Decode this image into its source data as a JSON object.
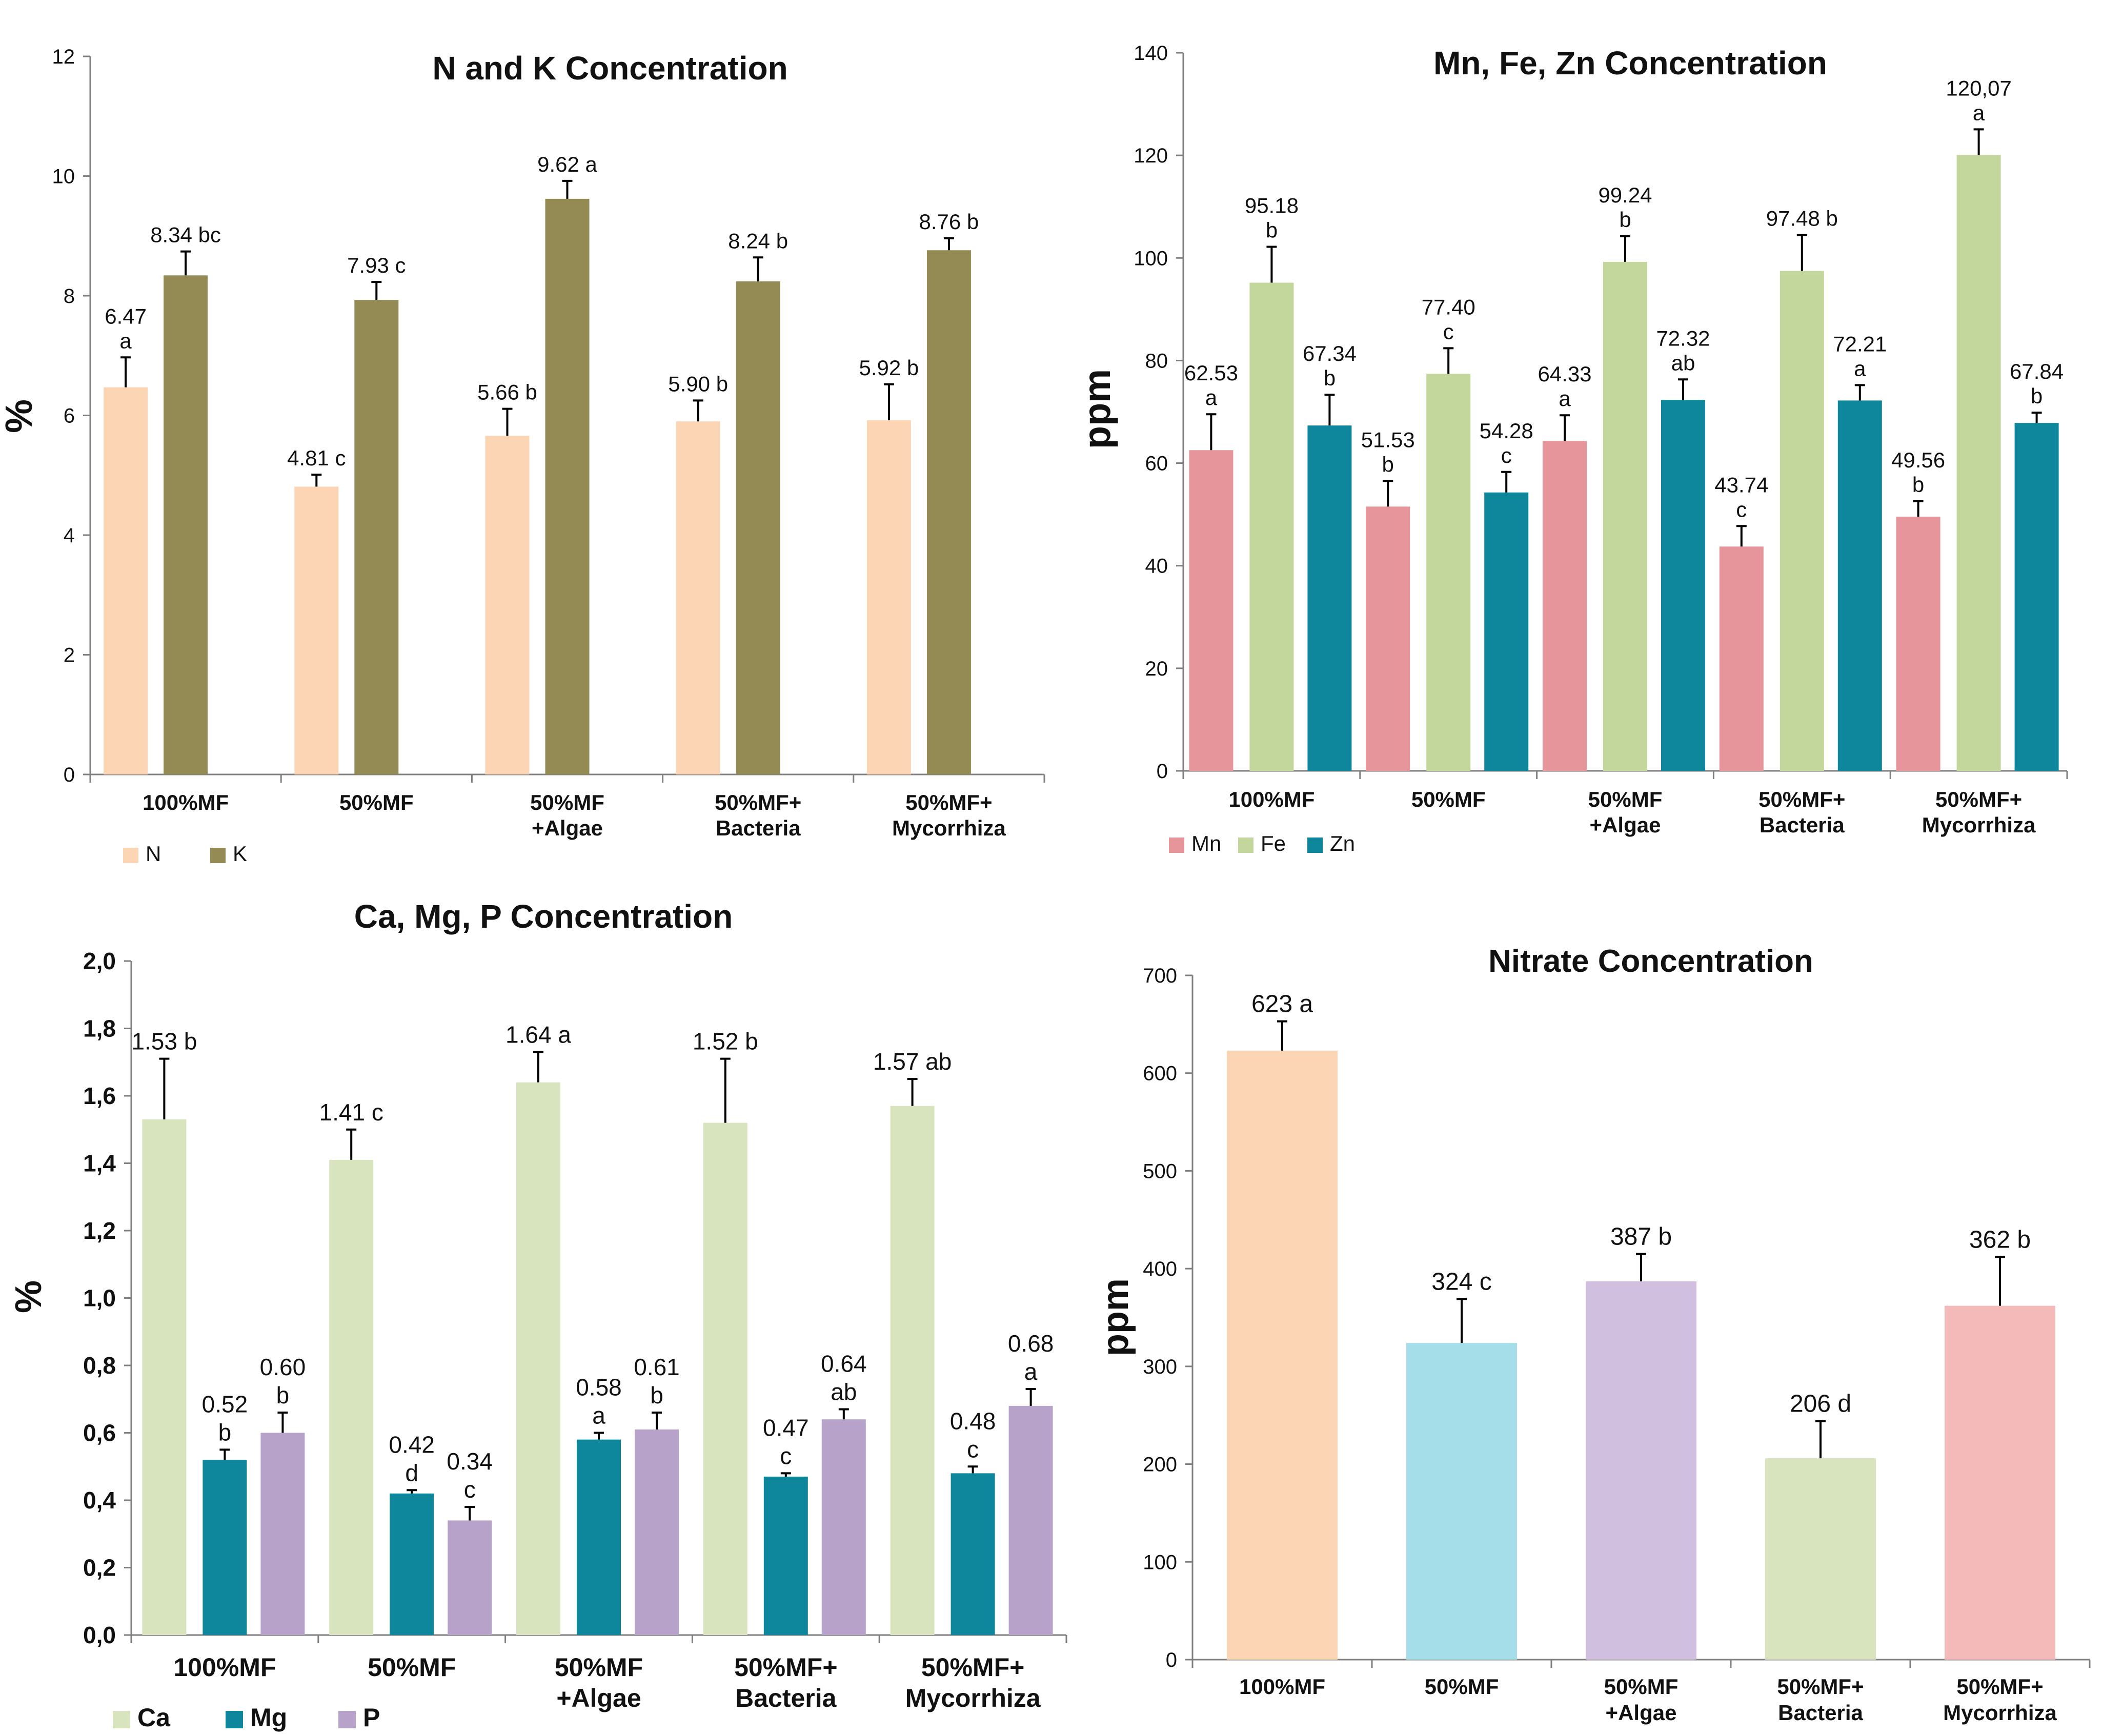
{
  "chart_data": [
    {
      "id": "nk",
      "type": "bar",
      "title": "N and K Concentration",
      "xlabel": "",
      "ylabel": "%",
      "ylim": [
        0,
        12
      ],
      "yticks": [
        "0",
        "2",
        "4",
        "6",
        "8",
        "10",
        "12"
      ],
      "grid": false,
      "legend_position": "bottom-left",
      "categories": [
        [
          "100%MF"
        ],
        [
          "50%MF"
        ],
        [
          "50%MF",
          "+Algae"
        ],
        [
          "50%MF+",
          "Bacteria"
        ],
        [
          "50%MF+",
          "Mycorrhiza"
        ]
      ],
      "series": [
        {
          "name": "N",
          "color": "#FCD5B4",
          "values": [
            6.47,
            4.81,
            5.66,
            5.9,
            5.92
          ],
          "errors": [
            0.5,
            0.2,
            0.45,
            0.35,
            0.6
          ],
          "labels": [
            [
              "6.47",
              "a"
            ],
            [
              "4.81 c"
            ],
            [
              "5.66 b"
            ],
            [
              "5.90 b"
            ],
            [
              "5.92 b"
            ]
          ]
        },
        {
          "name": "K",
          "color": "#948A54",
          "values": [
            8.34,
            7.93,
            9.62,
            8.24,
            8.76
          ],
          "errors": [
            0.4,
            0.3,
            0.3,
            0.4,
            0.2
          ],
          "labels": [
            [
              "8.34 bc"
            ],
            [
              "7.93 c"
            ],
            [
              "9.62 a"
            ],
            [
              "8.24 b"
            ],
            [
              "8.76 b"
            ]
          ]
        }
      ]
    },
    {
      "id": "mnfezn",
      "type": "bar",
      "title": "Mn, Fe, Zn Concentration",
      "xlabel": "",
      "ylabel": "ppm",
      "ylim": [
        0,
        140
      ],
      "yticks": [
        "0",
        "20",
        "40",
        "60",
        "80",
        "100",
        "120",
        "140"
      ],
      "grid": false,
      "legend_position": "bottom-left",
      "categories": [
        [
          "100%MF"
        ],
        [
          "50%MF"
        ],
        [
          "50%MF",
          "+Algae"
        ],
        [
          "50%MF+",
          "Bacteria"
        ],
        [
          "50%MF+",
          "Mycorrhiza"
        ]
      ],
      "series": [
        {
          "name": "Mn",
          "color": "#E6959A",
          "values": [
            62.53,
            51.53,
            64.33,
            43.74,
            49.56
          ],
          "errors": [
            7,
            5,
            5,
            4,
            3
          ],
          "labels": [
            [
              "62.53",
              "a"
            ],
            [
              "51.53",
              "b"
            ],
            [
              "64.33",
              "a"
            ],
            [
              "43.74",
              "c"
            ],
            [
              "49.56",
              "b"
            ]
          ]
        },
        {
          "name": "Fe",
          "color": "#C3D69B",
          "values": [
            95.18,
            77.4,
            99.24,
            97.48,
            120.07
          ],
          "errors": [
            7,
            5,
            5,
            7,
            5
          ],
          "labels": [
            [
              "95.18",
              "b"
            ],
            [
              "77.40",
              "c"
            ],
            [
              "99.24",
              "b"
            ],
            [
              "97.48 b"
            ],
            [
              "120,07",
              "a"
            ]
          ]
        },
        {
          "name": "Zn",
          "color": "#0E879D",
          "values": [
            67.34,
            54.28,
            72.32,
            72.21,
            67.84
          ],
          "errors": [
            6,
            4,
            4,
            3,
            2
          ],
          "labels": [
            [
              "67.34",
              "b"
            ],
            [
              "54.28",
              "c"
            ],
            [
              "72.32",
              "ab"
            ],
            [
              "72.21",
              "a"
            ],
            [
              "67.84",
              "b"
            ]
          ]
        }
      ]
    },
    {
      "id": "camgp",
      "type": "bar",
      "title": "Ca, Mg, P Concentration",
      "xlabel": "",
      "ylabel": "%",
      "ylim": [
        0,
        2.0
      ],
      "yticks": [
        "0,0",
        "0,2",
        "0,4",
        "0,6",
        "0,8",
        "1,0",
        "1,2",
        "1,4",
        "1,6",
        "1,8",
        "2,0"
      ],
      "grid": false,
      "legend_position": "bottom-left",
      "categories": [
        [
          "100%MF"
        ],
        [
          "50%MF"
        ],
        [
          "50%MF",
          "+Algae"
        ],
        [
          "50%MF+",
          "Bacteria"
        ],
        [
          "50%MF+",
          "Mycorrhiza"
        ]
      ],
      "series": [
        {
          "name": "Ca",
          "color": "#D7E4BD",
          "values": [
            1.53,
            1.41,
            1.64,
            1.52,
            1.57
          ],
          "errors": [
            0.18,
            0.09,
            0.09,
            0.19,
            0.08
          ],
          "labels": [
            [
              "1.53 b"
            ],
            [
              "1.41 c"
            ],
            [
              "1.64 a"
            ],
            [
              "1.52 b"
            ],
            [
              "1.57 ab"
            ]
          ]
        },
        {
          "name": "Mg",
          "color": "#0E879D",
          "values": [
            0.52,
            0.42,
            0.58,
            0.47,
            0.48
          ],
          "errors": [
            0.03,
            0.01,
            0.02,
            0.01,
            0.02
          ],
          "labels": [
            [
              "0.52",
              "b"
            ],
            [
              "0.42",
              "d"
            ],
            [
              "0.58",
              "a"
            ],
            [
              "0.47",
              "c"
            ],
            [
              "0.48",
              "c"
            ]
          ]
        },
        {
          "name": "P",
          "color": "#B7A3CA",
          "values": [
            0.6,
            0.34,
            0.61,
            0.64,
            0.68
          ],
          "errors": [
            0.06,
            0.04,
            0.05,
            0.03,
            0.05
          ],
          "labels": [
            [
              "0.60",
              "b"
            ],
            [
              "0.34",
              "c"
            ],
            [
              "0.61",
              "b"
            ],
            [
              "0.64",
              "ab"
            ],
            [
              "0.68",
              "a"
            ]
          ]
        }
      ]
    },
    {
      "id": "nitrate",
      "type": "bar",
      "title": "Nitrate Concentration",
      "xlabel": "",
      "ylabel": "ppm",
      "ylim": [
        0,
        700
      ],
      "yticks": [
        "0",
        "100",
        "200",
        "300",
        "400",
        "500",
        "600",
        "700"
      ],
      "grid": false,
      "legend_position": "none",
      "categories": [
        [
          "100%MF"
        ],
        [
          "50%MF"
        ],
        [
          "50%MF",
          "+Algae"
        ],
        [
          "50%MF+",
          "Bacteria"
        ],
        [
          "50%MF+",
          "Mycorrhiza"
        ]
      ],
      "values": [
        623,
        324,
        387,
        206,
        362
      ],
      "errors": [
        30,
        45,
        28,
        38,
        50
      ],
      "colors": [
        "#FCD5B4",
        "#A5DDE8",
        "#D1BFDF",
        "#D7E4BD",
        "#F4B9B9"
      ],
      "labels": [
        "623 a",
        "324 c",
        "387 b",
        "206 d",
        "362 b"
      ]
    }
  ]
}
